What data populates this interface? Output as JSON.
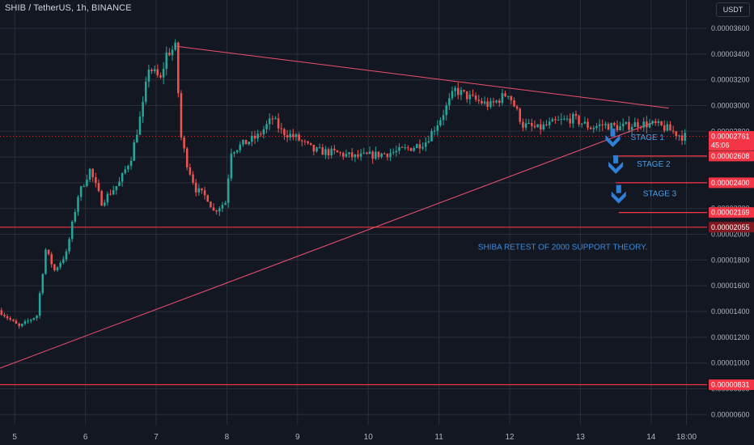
{
  "header": {
    "symbol_title": "SHIB / TetherUS, 1h, BINANCE",
    "currency_badge": "USDT"
  },
  "chart_data": {
    "type": "candlestick",
    "title": "SHIB / TetherUS, 1h, BINANCE",
    "y_axis": {
      "ticks": [
        "0.00000600",
        "0.00000800",
        "0.00001000",
        "0.00001200",
        "0.00001400",
        "0.00001600",
        "0.00001800",
        "0.00002000",
        "0.00002200",
        "0.00002400",
        "0.00002600",
        "0.00002800",
        "0.00003000",
        "0.00003200",
        "0.00003400",
        "0.00003600"
      ],
      "tick_values": [
        6e-06,
        8e-06,
        1e-05,
        1.2e-05,
        1.4e-05,
        1.6e-05,
        1.8e-05,
        2e-05,
        2.2e-05,
        2.4e-05,
        2.6e-05,
        2.8e-05,
        3e-05,
        3.2e-05,
        3.4e-05,
        3.6e-05
      ],
      "range": [
        5.2e-06,
        3.82e-05
      ]
    },
    "x_axis": {
      "ticks": [
        "5",
        "6",
        "7",
        "8",
        "9",
        "10",
        "11",
        "12",
        "13",
        "14",
        "18:00"
      ],
      "tick_positions": [
        0,
        24,
        48,
        72,
        96,
        120,
        144,
        168,
        192,
        216,
        228
      ],
      "range": [
        -5,
        235
      ]
    },
    "price_path": [
      [
        -5,
        1.41e-05
      ],
      [
        2,
        1.28e-05
      ],
      [
        8,
        1.37e-05
      ],
      [
        11,
        1.88e-05
      ],
      [
        14,
        1.72e-05
      ],
      [
        18,
        1.85e-05
      ],
      [
        22,
        2.3e-05
      ],
      [
        26,
        2.5e-05
      ],
      [
        30,
        2.25e-05
      ],
      [
        36,
        2.4e-05
      ],
      [
        40,
        2.6e-05
      ],
      [
        44,
        3e-05
      ],
      [
        46,
        3.3e-05
      ],
      [
        50,
        3.2e-05
      ],
      [
        52,
        3.4e-05
      ],
      [
        55,
        3.45e-05
      ],
      [
        57,
        2.75e-05
      ],
      [
        59,
        2.55e-05
      ],
      [
        62,
        2.35e-05
      ],
      [
        66,
        2.28e-05
      ],
      [
        68,
        2.18e-05
      ],
      [
        72,
        2.25e-05
      ],
      [
        74,
        2.65e-05
      ],
      [
        78,
        2.7e-05
      ],
      [
        83,
        2.76e-05
      ],
      [
        88,
        2.9e-05
      ],
      [
        91,
        2.8e-05
      ],
      [
        96,
        2.75e-05
      ],
      [
        102,
        2.65e-05
      ],
      [
        110,
        2.63e-05
      ],
      [
        116,
        2.6e-05
      ],
      [
        124,
        2.62e-05
      ],
      [
        130,
        2.64e-05
      ],
      [
        136,
        2.68e-05
      ],
      [
        140,
        2.72e-05
      ],
      [
        145,
        2.9e-05
      ],
      [
        150,
        3.12e-05
      ],
      [
        156,
        3.05e-05
      ],
      [
        162,
        3e-05
      ],
      [
        168,
        3.1e-05
      ],
      [
        173,
        2.85e-05
      ],
      [
        178,
        2.82e-05
      ],
      [
        184,
        2.87e-05
      ],
      [
        190,
        2.9e-05
      ],
      [
        196,
        2.83e-05
      ],
      [
        200,
        2.85e-05
      ],
      [
        206,
        2.83e-05
      ],
      [
        212,
        2.86e-05
      ],
      [
        218,
        2.85e-05
      ],
      [
        222,
        2.82e-05
      ],
      [
        227,
        2.76e-05
      ]
    ],
    "trend_lines": [
      {
        "name": "descending resistance",
        "from": [
          55,
          3.46e-05
        ],
        "to": [
          222,
          2.98e-05
        ]
      },
      {
        "name": "ascending support",
        "from": [
          -5,
          9.6e-06
        ],
        "to": [
          217,
          2.87e-05
        ]
      }
    ],
    "horizontal_levels": [
      {
        "value": 2.761e-05,
        "label": "0.00002761",
        "countdown": "45:06",
        "style": "dotted",
        "color": "#f23645"
      },
      {
        "value": 2.608e-05,
        "label": "0.00002608",
        "style": "solid",
        "color": "#f23645"
      },
      {
        "value": 2.4e-05,
        "label": "0.00002400",
        "style": "solid",
        "color": "#f23645"
      },
      {
        "value": 2.169e-05,
        "label": "0.00002169",
        "style": "solid",
        "color": "#f23645"
      },
      {
        "value": 2.055e-05,
        "label": "0.00002055",
        "style": "solid",
        "color": "#f23645",
        "full_width": true,
        "dark_tag": true
      },
      {
        "value": 8.31e-06,
        "label": "0.00000831",
        "style": "solid",
        "color": "#f23645",
        "full_width": true
      }
    ],
    "stages": [
      {
        "label": "STAGE 1",
        "x": 203,
        "target_value": 2.608e-05
      },
      {
        "label": "STAGE 2",
        "x": 204,
        "target_value": 2.4e-05
      },
      {
        "label": "STAGE 3",
        "x": 205,
        "target_value": 2.169e-05
      }
    ],
    "annotation": "SHIBA RETEST OF 2000 SUPPORT THEORY.",
    "annotation_anchor": [
      186,
      1.88e-05
    ],
    "colors": {
      "up": "#26a69a",
      "down": "#ef5350",
      "level": "#f23645",
      "background": "#131722",
      "grid": "#2a2e39",
      "stage": "#2f7fd6"
    }
  }
}
